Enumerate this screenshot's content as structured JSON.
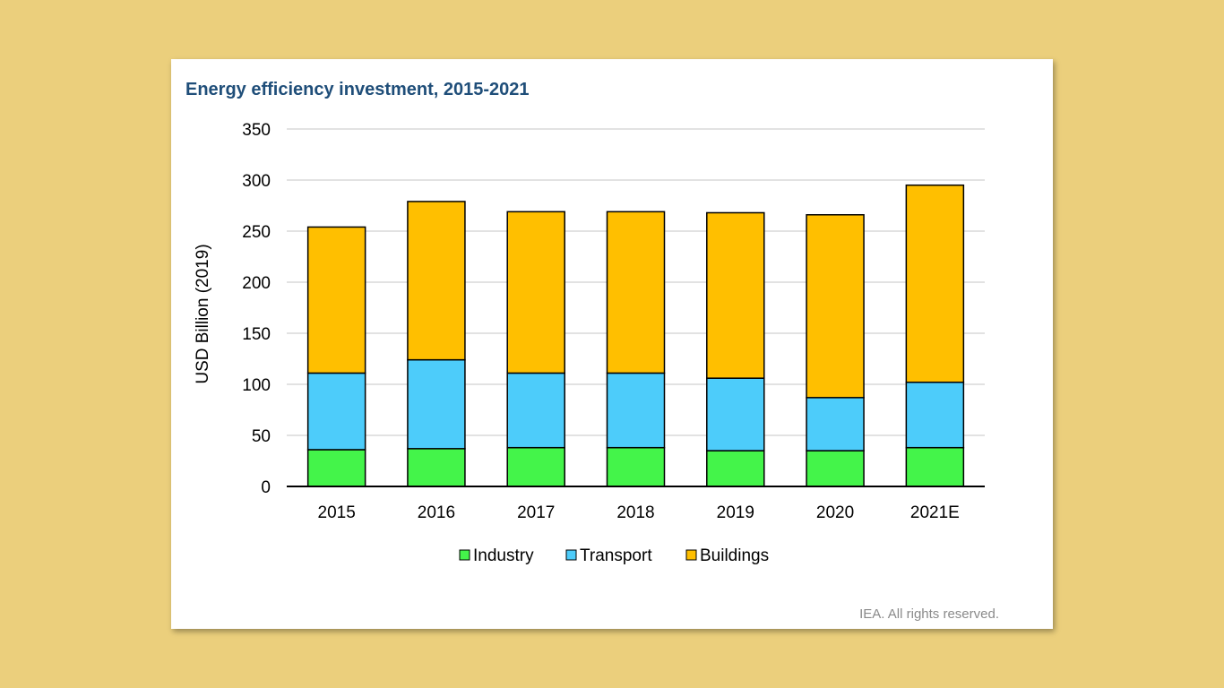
{
  "chart_data": {
    "type": "bar",
    "stacked": true,
    "title": "Energy efficiency investment, 2015-2021",
    "xlabel": "",
    "ylabel": "USD Billion (2019)",
    "ylim": [
      0,
      350
    ],
    "yticks": [
      0,
      50,
      100,
      150,
      200,
      250,
      300,
      350
    ],
    "grid": true,
    "legend_placement": "bottom",
    "categories": [
      "2015",
      "2016",
      "2017",
      "2018",
      "2019",
      "2020",
      "2021E"
    ],
    "series": [
      {
        "name": "Industry",
        "color": "#44F44A",
        "values": [
          36,
          37,
          38,
          38,
          35,
          35,
          38
        ]
      },
      {
        "name": "Transport",
        "color": "#4DCCFA",
        "values": [
          75,
          87,
          73,
          73,
          71,
          52,
          64
        ]
      },
      {
        "name": "Buildings",
        "color": "#FFBF00",
        "values": [
          143,
          155,
          158,
          158,
          162,
          179,
          193
        ]
      }
    ]
  },
  "credit": "IEA. All rights reserved."
}
